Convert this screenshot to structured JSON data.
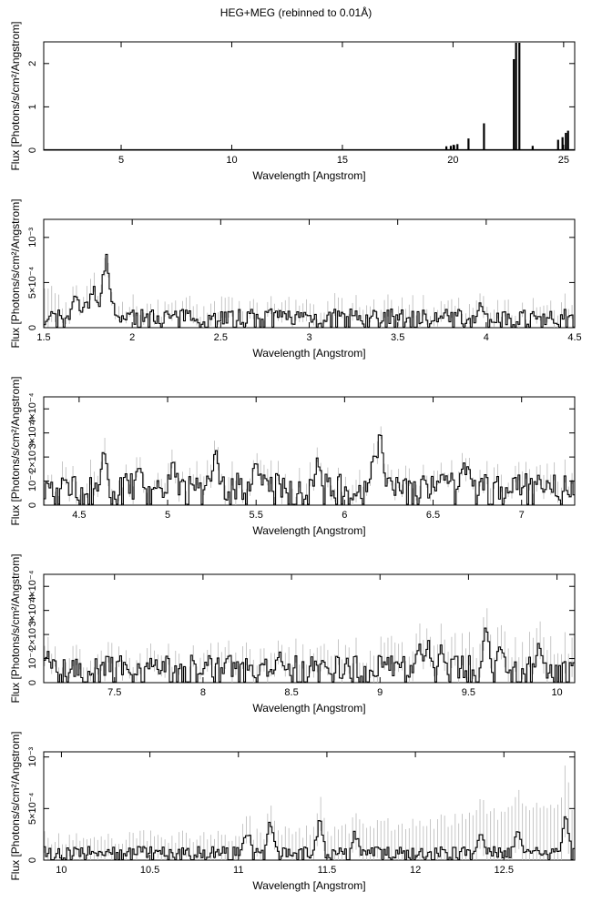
{
  "figure": {
    "title": "HEG+MEG (rebinned to 0.01Å)"
  },
  "chart_data": [
    {
      "type": "line",
      "title": "",
      "xlabel": "Wavelength [Angstrom]",
      "ylabel": "Flux [Photons/s/cm²/Angstrom]",
      "xlim": [
        1.5,
        25.5
      ],
      "ylim": [
        0,
        2.5
      ],
      "x_ticks": [
        5,
        10,
        15,
        20,
        25
      ],
      "x_tick_labels": [
        "5",
        "10",
        "15",
        "20",
        "25"
      ],
      "y_ticks": [
        0,
        1,
        2
      ],
      "y_tick_labels": [
        "0",
        "1",
        "2"
      ],
      "baseline": 0.012,
      "lines": [
        {
          "x": 19.7,
          "y": 0.09
        },
        {
          "x": 19.9,
          "y": 0.1
        },
        {
          "x": 20.05,
          "y": 0.12
        },
        {
          "x": 20.2,
          "y": 0.14
        },
        {
          "x": 20.7,
          "y": 0.27
        },
        {
          "x": 21.4,
          "y": 0.62
        },
        {
          "x": 22.75,
          "y": 2.1
        },
        {
          "x": 22.85,
          "y": 2.48
        },
        {
          "x": 23.0,
          "y": 2.48
        },
        {
          "x": 23.6,
          "y": 0.1
        },
        {
          "x": 24.75,
          "y": 0.24
        },
        {
          "x": 24.95,
          "y": 0.3
        },
        {
          "x": 25.1,
          "y": 0.4
        },
        {
          "x": 25.2,
          "y": 0.45
        }
      ]
    },
    {
      "type": "line",
      "title": "",
      "xlabel": "Wavelength [Angstrom]",
      "ylabel": "Flux [Photons/s/cm²/Angstrom]",
      "xlim": [
        1.5,
        4.5
      ],
      "ylim": [
        0,
        0.0012
      ],
      "x_ticks": [
        1.5,
        2,
        2.5,
        3,
        3.5,
        4,
        4.5
      ],
      "x_tick_labels": [
        "1.5",
        "2",
        "2.5",
        "3",
        "3.5",
        "4",
        "4.5"
      ],
      "y_ticks": [
        0,
        0.0005,
        0.001
      ],
      "y_tick_labels": [
        "0",
        "5×10⁻⁴",
        "10⁻³"
      ],
      "bin": 0.01,
      "noise_level": 0.00011,
      "error_level": 0.00012,
      "rising_error_end": 0.0004,
      "lines": [
        {
          "x": 1.68,
          "y": 0.00045
        },
        {
          "x": 1.74,
          "y": 0.0004
        },
        {
          "x": 1.78,
          "y": 0.00055
        },
        {
          "x": 1.81,
          "y": 0.00035
        },
        {
          "x": 1.85,
          "y": 0.0009
        },
        {
          "x": 1.86,
          "y": 0.0007
        },
        {
          "x": 1.88,
          "y": 0.0004
        },
        {
          "x": 3.97,
          "y": 0.00035
        }
      ]
    },
    {
      "type": "line",
      "title": "",
      "xlabel": "Wavelength [Angstrom]",
      "ylabel": "Flux [Photons/s/cm²/Angstrom]",
      "xlim": [
        4.3,
        7.3
      ],
      "ylim": [
        0,
        0.00045
      ],
      "x_ticks": [
        4.5,
        5,
        5.5,
        6,
        6.5,
        7
      ],
      "x_tick_labels": [
        "4.5",
        "5",
        "5.5",
        "6",
        "6.5",
        "7"
      ],
      "y_ticks": [
        0,
        0.0001,
        0.0002,
        0.0003,
        0.0004
      ],
      "y_tick_labels": [
        "0",
        "10⁻⁴",
        "2×10⁻⁴",
        "3×10⁻⁴",
        "4×10⁻⁴"
      ],
      "bin": 0.01,
      "noise_level": 7e-05,
      "error_level": 5e-05,
      "lines": [
        {
          "x": 4.64,
          "y": 0.00025
        },
        {
          "x": 4.84,
          "y": 0.0002
        },
        {
          "x": 5.03,
          "y": 0.0002
        },
        {
          "x": 5.27,
          "y": 0.00025
        },
        {
          "x": 5.5,
          "y": 0.00023
        },
        {
          "x": 5.85,
          "y": 0.00022
        },
        {
          "x": 6.17,
          "y": 0.0003
        },
        {
          "x": 6.2,
          "y": 0.00035
        },
        {
          "x": 6.57,
          "y": 0.00015
        },
        {
          "x": 6.67,
          "y": 0.0002
        },
        {
          "x": 6.7,
          "y": 0.00019
        },
        {
          "x": 7.15,
          "y": 0.00012
        }
      ]
    },
    {
      "type": "line",
      "title": "",
      "xlabel": "Wavelength [Angstrom]",
      "ylabel": "Flux [Photons/s/cm²/Angstrom]",
      "xlim": [
        7.1,
        10.1
      ],
      "ylim": [
        0,
        0.00045
      ],
      "x_ticks": [
        7.5,
        8,
        8.5,
        9,
        9.5,
        10
      ],
      "x_tick_labels": [
        "7.5",
        "8",
        "8.5",
        "9",
        "9.5",
        "10"
      ],
      "y_ticks": [
        0,
        0.0001,
        0.0002,
        0.0003,
        0.0004
      ],
      "y_tick_labels": [
        "0",
        "10⁻⁴",
        "2×10⁻⁴",
        "3×10⁻⁴",
        "4×10⁻⁴"
      ],
      "bin": 0.01,
      "noise_level": 6e-05,
      "error_level": 6e-05,
      "rising_error_end": 0.00012,
      "lines": [
        {
          "x": 7.12,
          "y": 0.00014
        },
        {
          "x": 8.43,
          "y": 0.00015
        },
        {
          "x": 9.03,
          "y": 0.0001
        },
        {
          "x": 9.22,
          "y": 0.00018
        },
        {
          "x": 9.27,
          "y": 0.0002
        },
        {
          "x": 9.35,
          "y": 0.00017
        },
        {
          "x": 9.6,
          "y": 0.00025
        },
        {
          "x": 9.68,
          "y": 0.0002
        },
        {
          "x": 9.9,
          "y": 0.00018
        }
      ]
    },
    {
      "type": "line",
      "title": "",
      "xlabel": "Wavelength [Angstrom]",
      "ylabel": "Flux [Photons/s/cm²/Angstrom]",
      "xlim": [
        9.9,
        12.9
      ],
      "ylim": [
        0,
        0.00105
      ],
      "x_ticks": [
        10,
        10.5,
        11,
        11.5,
        12,
        12.5
      ],
      "x_tick_labels": [
        "10",
        "10.5",
        "11",
        "11.5",
        "12",
        "12.5"
      ],
      "y_ticks": [
        0,
        0.0005,
        0.001
      ],
      "y_tick_labels": [
        "0",
        "5×10⁻⁴",
        "10⁻³"
      ],
      "bin": 0.01,
      "noise_level": 7e-05,
      "error_level": 0.00015,
      "rising_error_end": 0.00048,
      "lines": [
        {
          "x": 11.05,
          "y": 0.00035
        },
        {
          "x": 11.18,
          "y": 0.0004
        },
        {
          "x": 11.46,
          "y": 0.00042
        },
        {
          "x": 11.66,
          "y": 0.0003
        },
        {
          "x": 12.37,
          "y": 0.0003
        },
        {
          "x": 12.58,
          "y": 0.00034
        },
        {
          "x": 12.85,
          "y": 0.00048
        }
      ]
    }
  ]
}
